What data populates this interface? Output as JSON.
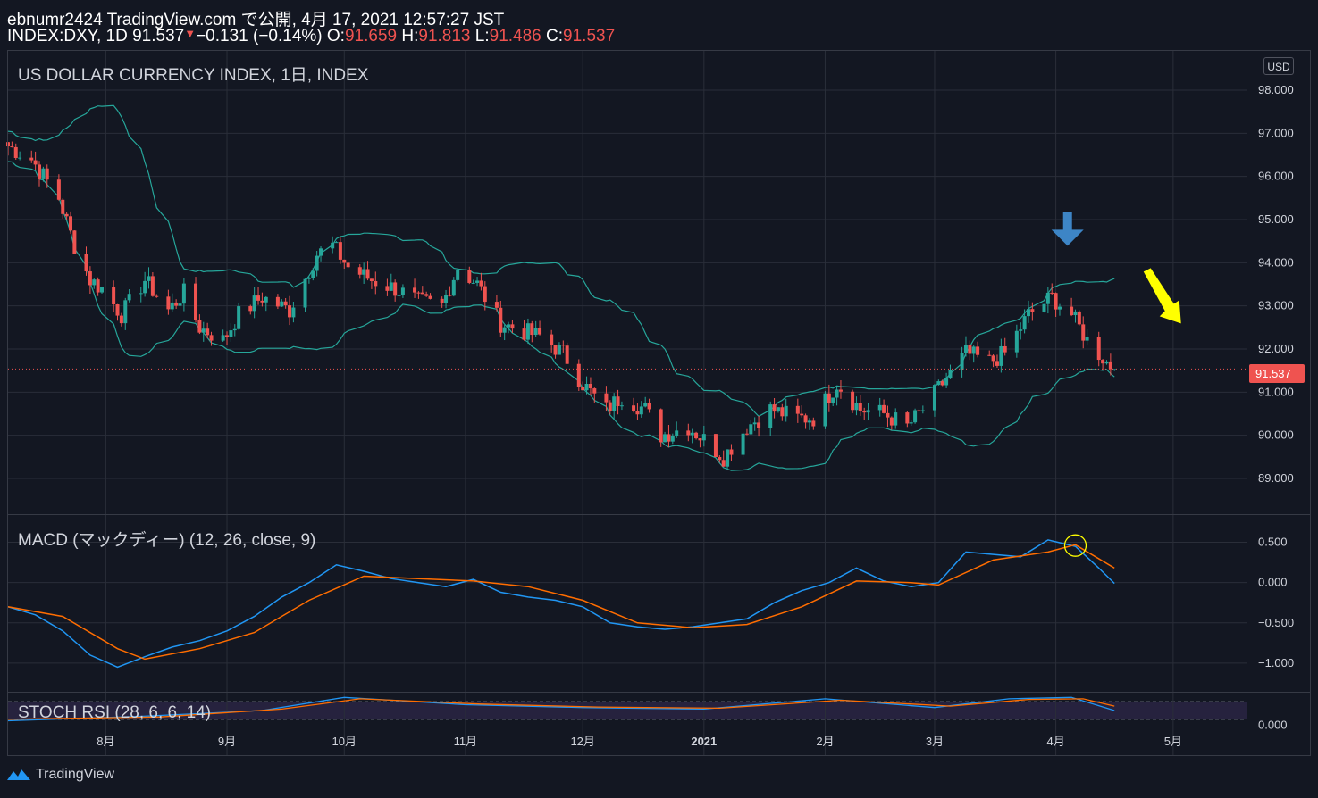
{
  "header": {
    "line1": "ebnumr2424 TradingView.com で公開, 4月 17, 2021 12:57:27 JST",
    "symbol": "INDEX:DXY, 1D 91.537",
    "down_marker": "▼",
    "change": "−0.131 (−0.14%)",
    "o_label": " O:",
    "o_value": "91.659",
    "h_label": " H:",
    "h_value": "91.813",
    "l_label": " L:",
    "l_value": "91.486",
    "c_label": " C:",
    "c_value": "91.537"
  },
  "main_pane": {
    "title": "US DOLLAR CURRENCY INDEX, 1日, INDEX",
    "currency_badge": "USD",
    "last_price": "91.537"
  },
  "macd_pane": {
    "title": "MACD (マックディー) (12, 26, close, 9)"
  },
  "stoch_pane": {
    "title": "STOCH RSI (28, 6, 6, 14)"
  },
  "footer": {
    "brand": "TradingView"
  },
  "colors": {
    "up": "#26a69a",
    "down": "#ef5350",
    "band": "#26a69a",
    "macd": "#2196f3",
    "signal": "#ff6d00",
    "arrow_blue": "#3d85c6",
    "arrow_yellow": "#ffff00"
  },
  "chart_data": [
    {
      "type": "candlestick",
      "title": "US DOLLAR CURRENCY INDEX, 1日, INDEX",
      "y_ticks": [
        "98.000",
        "97.000",
        "96.000",
        "95.000",
        "94.000",
        "93.000",
        "92.000",
        "91.000",
        "90.000",
        "89.000"
      ],
      "ylim": [
        88.4,
        98.6
      ],
      "x_ticks": [
        "8月",
        "9月",
        "10月",
        "11月",
        "12月",
        "2021",
        "2月",
        "3月",
        "4月",
        "5月"
      ],
      "x_tick_dates": [
        "2020-08-01",
        "2020-09-01",
        "2020-10-01",
        "2020-11-01",
        "2020-12-01",
        "2021-01-01",
        "2021-02-01",
        "2021-03-01",
        "2021-04-01",
        "2021-05-01"
      ],
      "x_range": [
        "2020-07-07",
        "2021-05-20"
      ],
      "close_path": [
        {
          "date": "2020-07-07",
          "close": 96.7
        },
        {
          "date": "2020-07-13",
          "close": 96.4
        },
        {
          "date": "2020-07-20",
          "close": 95.5
        },
        {
          "date": "2020-07-24",
          "close": 94.4
        },
        {
          "date": "2020-07-28",
          "close": 93.6
        },
        {
          "date": "2020-07-31",
          "close": 93.4
        },
        {
          "date": "2020-08-05",
          "close": 92.8
        },
        {
          "date": "2020-08-11",
          "close": 93.6
        },
        {
          "date": "2020-08-17",
          "close": 92.9
        },
        {
          "date": "2020-08-21",
          "close": 93.3
        },
        {
          "date": "2020-08-25",
          "close": 92.5
        },
        {
          "date": "2020-08-31",
          "close": 92.2
        },
        {
          "date": "2020-09-04",
          "close": 92.8
        },
        {
          "date": "2020-09-10",
          "close": 93.2
        },
        {
          "date": "2020-09-17",
          "close": 92.9
        },
        {
          "date": "2020-09-24",
          "close": 94.2
        },
        {
          "date": "2020-09-28",
          "close": 94.4
        },
        {
          "date": "2020-10-02",
          "close": 93.9
        },
        {
          "date": "2020-10-08",
          "close": 93.6
        },
        {
          "date": "2020-10-14",
          "close": 93.4
        },
        {
          "date": "2020-10-20",
          "close": 93.1
        },
        {
          "date": "2020-10-26",
          "close": 93.0
        },
        {
          "date": "2020-10-30",
          "close": 93.9
        },
        {
          "date": "2020-11-04",
          "close": 93.5
        },
        {
          "date": "2020-11-10",
          "close": 92.6
        },
        {
          "date": "2020-11-16",
          "close": 92.4
        },
        {
          "date": "2020-11-20",
          "close": 92.3
        },
        {
          "date": "2020-11-26",
          "close": 91.9
        },
        {
          "date": "2020-12-01",
          "close": 91.2
        },
        {
          "date": "2020-12-07",
          "close": 90.6
        },
        {
          "date": "2020-12-11",
          "close": 90.9
        },
        {
          "date": "2020-12-17",
          "close": 90.6
        },
        {
          "date": "2020-12-21",
          "close": 90.0
        },
        {
          "date": "2020-12-28",
          "close": 90.2
        },
        {
          "date": "2021-01-01",
          "close": 89.9
        },
        {
          "date": "2021-01-06",
          "close": 89.5
        },
        {
          "date": "2021-01-12",
          "close": 90.2
        },
        {
          "date": "2021-01-18",
          "close": 90.6
        },
        {
          "date": "2021-01-25",
          "close": 90.4
        },
        {
          "date": "2021-01-29",
          "close": 90.4
        },
        {
          "date": "2021-02-04",
          "close": 91.2
        },
        {
          "date": "2021-02-10",
          "close": 90.6
        },
        {
          "date": "2021-02-16",
          "close": 90.5
        },
        {
          "date": "2021-02-22",
          "close": 90.2
        },
        {
          "date": "2021-02-26",
          "close": 90.6
        },
        {
          "date": "2021-03-03",
          "close": 91.2
        },
        {
          "date": "2021-03-09",
          "close": 91.9
        },
        {
          "date": "2021-03-15",
          "close": 91.7
        },
        {
          "date": "2021-03-19",
          "close": 91.9
        },
        {
          "date": "2021-03-25",
          "close": 92.8
        },
        {
          "date": "2021-03-31",
          "close": 93.2
        },
        {
          "date": "2021-04-05",
          "close": 92.8
        },
        {
          "date": "2021-04-09",
          "close": 92.2
        },
        {
          "date": "2021-04-14",
          "close": 91.7
        },
        {
          "date": "2021-04-16",
          "close": 91.537
        }
      ],
      "last_price": 91.537,
      "annotations": [
        "blue down arrow near 2021-04-01 peak",
        "yellow arrow pointing down-right toward 5月"
      ]
    },
    {
      "type": "line",
      "title": "MACD (マックディー) (12, 26, close, 9)",
      "y_ticks": [
        "0.500",
        "0.000",
        "−0.500",
        "−1.000"
      ],
      "ylim": [
        -1.3,
        0.75
      ],
      "series": [
        {
          "color": "#2196f3",
          "points": [
            {
              "date": "2020-07-07",
              "value": -0.3
            },
            {
              "date": "2020-07-14",
              "value": -0.4
            },
            {
              "date": "2020-07-21",
              "value": -0.6
            },
            {
              "date": "2020-07-28",
              "value": -0.9
            },
            {
              "date": "2020-08-04",
              "value": -1.05
            },
            {
              "date": "2020-08-11",
              "value": -0.92
            },
            {
              "date": "2020-08-18",
              "value": -0.8
            },
            {
              "date": "2020-08-25",
              "value": -0.72
            },
            {
              "date": "2020-09-01",
              "value": -0.6
            },
            {
              "date": "2020-09-08",
              "value": -0.42
            },
            {
              "date": "2020-09-15",
              "value": -0.18
            },
            {
              "date": "2020-09-22",
              "value": 0.0
            },
            {
              "date": "2020-09-29",
              "value": 0.22
            },
            {
              "date": "2020-10-06",
              "value": 0.14
            },
            {
              "date": "2020-10-13",
              "value": 0.05
            },
            {
              "date": "2020-10-20",
              "value": 0.0
            },
            {
              "date": "2020-10-27",
              "value": -0.05
            },
            {
              "date": "2020-11-03",
              "value": 0.04
            },
            {
              "date": "2020-11-10",
              "value": -0.12
            },
            {
              "date": "2020-11-17",
              "value": -0.18
            },
            {
              "date": "2020-11-24",
              "value": -0.22
            },
            {
              "date": "2020-12-01",
              "value": -0.3
            },
            {
              "date": "2020-12-08",
              "value": -0.5
            },
            {
              "date": "2020-12-15",
              "value": -0.55
            },
            {
              "date": "2020-12-22",
              "value": -0.58
            },
            {
              "date": "2020-12-29",
              "value": -0.55
            },
            {
              "date": "2021-01-05",
              "value": -0.5
            },
            {
              "date": "2021-01-12",
              "value": -0.45
            },
            {
              "date": "2021-01-19",
              "value": -0.25
            },
            {
              "date": "2021-01-26",
              "value": -0.1
            },
            {
              "date": "2021-02-02",
              "value": 0.0
            },
            {
              "date": "2021-02-09",
              "value": 0.18
            },
            {
              "date": "2021-02-16",
              "value": 0.02
            },
            {
              "date": "2021-02-23",
              "value": -0.05
            },
            {
              "date": "2021-03-02",
              "value": 0.0
            },
            {
              "date": "2021-03-09",
              "value": 0.38
            },
            {
              "date": "2021-03-16",
              "value": 0.35
            },
            {
              "date": "2021-03-23",
              "value": 0.32
            },
            {
              "date": "2021-03-30",
              "value": 0.53
            },
            {
              "date": "2021-04-06",
              "value": 0.45
            },
            {
              "date": "2021-04-12",
              "value": 0.18
            },
            {
              "date": "2021-04-16",
              "value": -0.01
            }
          ]
        },
        {
          "color": "#ff6d00",
          "points": [
            {
              "date": "2020-07-07",
              "value": -0.3
            },
            {
              "date": "2020-07-21",
              "value": -0.42
            },
            {
              "date": "2020-08-04",
              "value": -0.82
            },
            {
              "date": "2020-08-11",
              "value": -0.95
            },
            {
              "date": "2020-08-25",
              "value": -0.82
            },
            {
              "date": "2020-09-08",
              "value": -0.62
            },
            {
              "date": "2020-09-22",
              "value": -0.22
            },
            {
              "date": "2020-10-06",
              "value": 0.08
            },
            {
              "date": "2020-10-20",
              "value": 0.05
            },
            {
              "date": "2020-11-03",
              "value": 0.02
            },
            {
              "date": "2020-11-17",
              "value": -0.05
            },
            {
              "date": "2020-12-01",
              "value": -0.22
            },
            {
              "date": "2020-12-15",
              "value": -0.5
            },
            {
              "date": "2020-12-29",
              "value": -0.56
            },
            {
              "date": "2021-01-12",
              "value": -0.52
            },
            {
              "date": "2021-01-26",
              "value": -0.3
            },
            {
              "date": "2021-02-09",
              "value": 0.02
            },
            {
              "date": "2021-02-23",
              "value": 0.0
            },
            {
              "date": "2021-03-02",
              "value": -0.03
            },
            {
              "date": "2021-03-16",
              "value": 0.28
            },
            {
              "date": "2021-03-30",
              "value": 0.38
            },
            {
              "date": "2021-04-06",
              "value": 0.47
            },
            {
              "date": "2021-04-16",
              "value": 0.18
            }
          ]
        }
      ],
      "annotations": [
        "yellow circle at MACD crossover near 2021-04-06"
      ]
    },
    {
      "type": "line",
      "title": "STOCH RSI (28, 6, 6, 14)",
      "y_ticks": [
        "0.000"
      ],
      "ylim": [
        -5,
        105
      ],
      "guide_levels": [
        80,
        20
      ],
      "series": [
        {
          "color": "#2196f3",
          "points": [
            {
              "date": "2020-07-07",
              "value": 15
            },
            {
              "date": "2020-08-10",
              "value": 30
            },
            {
              "date": "2020-09-10",
              "value": 50
            },
            {
              "date": "2020-10-01",
              "value": 95
            },
            {
              "date": "2020-11-01",
              "value": 70
            },
            {
              "date": "2020-12-01",
              "value": 60
            },
            {
              "date": "2021-01-01",
              "value": 55
            },
            {
              "date": "2021-02-01",
              "value": 90
            },
            {
              "date": "2021-03-01",
              "value": 60
            },
            {
              "date": "2021-03-20",
              "value": 90
            },
            {
              "date": "2021-04-05",
              "value": 95
            },
            {
              "date": "2021-04-16",
              "value": 50
            }
          ]
        },
        {
          "color": "#ff6d00",
          "points": [
            {
              "date": "2020-07-07",
              "value": 20
            },
            {
              "date": "2020-08-15",
              "value": 28
            },
            {
              "date": "2020-09-15",
              "value": 55
            },
            {
              "date": "2020-10-05",
              "value": 90
            },
            {
              "date": "2020-11-05",
              "value": 72
            },
            {
              "date": "2020-12-05",
              "value": 62
            },
            {
              "date": "2021-01-05",
              "value": 58
            },
            {
              "date": "2021-02-05",
              "value": 85
            },
            {
              "date": "2021-03-05",
              "value": 65
            },
            {
              "date": "2021-03-25",
              "value": 88
            },
            {
              "date": "2021-04-08",
              "value": 90
            },
            {
              "date": "2021-04-16",
              "value": 65
            }
          ]
        }
      ]
    }
  ]
}
